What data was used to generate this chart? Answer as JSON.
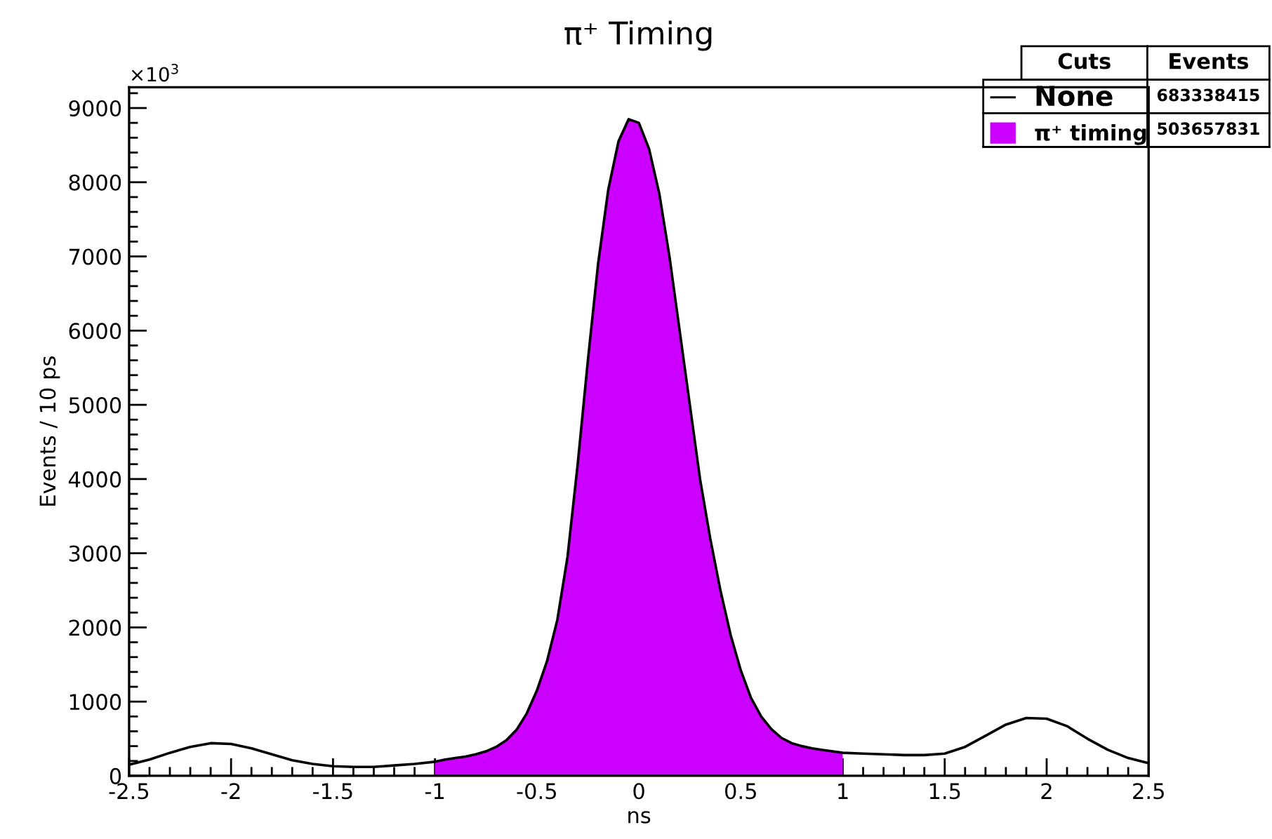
{
  "chart_data": {
    "type": "line",
    "title": "π⁺ Timing",
    "xlabel": "ns",
    "ylabel": "Events / 10 ps",
    "xlim": [
      -2.5,
      2.5
    ],
    "ylim": [
      0,
      9280
    ],
    "xticks": [
      -2.5,
      -2,
      -1.5,
      -1,
      -0.5,
      0,
      0.5,
      1,
      1.5,
      2,
      2.5
    ],
    "yticks": [
      0,
      1000,
      2000,
      3000,
      4000,
      5000,
      6000,
      7000,
      8000,
      9000
    ],
    "grid": false,
    "legend": "top right",
    "marker": "none",
    "line_style": "solid",
    "legend_title": "Cuts",
    "annotations": [
      "×10$^{3}$",
      "Events",
      "683338415",
      "503657831"
    ],
    "series": [
      {
        "name": "None",
        "color": "#000000",
        "x": [
          -2.5,
          -2.4,
          -2.3,
          -2.2,
          -2.1,
          -2.0,
          -1.9,
          -1.8,
          -1.7,
          -1.6,
          -1.5,
          -1.4,
          -1.3,
          -1.2,
          -1.1,
          -1.0,
          -0.95,
          -0.9,
          -0.85,
          -0.8,
          -0.75,
          -0.7,
          -0.65,
          -0.6,
          -0.55,
          -0.5,
          -0.45,
          -0.4,
          -0.35,
          -0.3,
          -0.25,
          -0.2,
          -0.15,
          -0.1,
          -0.05,
          0.0,
          0.05,
          0.1,
          0.15,
          0.2,
          0.25,
          0.3,
          0.35,
          0.4,
          0.45,
          0.5,
          0.55,
          0.6,
          0.65,
          0.7,
          0.75,
          0.8,
          0.85,
          0.9,
          0.95,
          1.0,
          1.1,
          1.2,
          1.3,
          1.4,
          1.5,
          1.6,
          1.7,
          1.8,
          1.9,
          2.0,
          2.1,
          2.2,
          2.3,
          2.4,
          2.5
        ],
        "values": [
          150,
          220,
          310,
          390,
          440,
          430,
          370,
          290,
          210,
          160,
          130,
          120,
          120,
          140,
          160,
          190,
          220,
          240,
          260,
          290,
          330,
          390,
          480,
          620,
          840,
          1150,
          1550,
          2100,
          2950,
          4200,
          5600,
          6900,
          7900,
          8550,
          8850,
          8800,
          8450,
          7850,
          7000,
          6000,
          5000,
          4000,
          3200,
          2500,
          1900,
          1420,
          1050,
          800,
          630,
          510,
          440,
          400,
          370,
          350,
          330,
          310,
          300,
          290,
          280,
          280,
          300,
          390,
          540,
          690,
          780,
          770,
          670,
          500,
          350,
          240,
          170
        ]
      },
      {
        "name": "π⁺ timing",
        "color": "#cc00ff",
        "type": "area",
        "x": [
          -1.0,
          -0.95,
          -0.9,
          -0.85,
          -0.8,
          -0.75,
          -0.7,
          -0.65,
          -0.6,
          -0.55,
          -0.5,
          -0.45,
          -0.4,
          -0.35,
          -0.3,
          -0.25,
          -0.2,
          -0.15,
          -0.1,
          -0.05,
          0.0,
          0.05,
          0.1,
          0.15,
          0.2,
          0.25,
          0.3,
          0.35,
          0.4,
          0.45,
          0.5,
          0.55,
          0.6,
          0.65,
          0.7,
          0.75,
          0.8,
          0.85,
          0.9,
          0.95,
          1.0
        ],
        "values": [
          190,
          220,
          240,
          260,
          290,
          330,
          390,
          480,
          620,
          840,
          1150,
          1550,
          2100,
          2950,
          4200,
          5600,
          6900,
          7900,
          8550,
          8850,
          8800,
          8450,
          7850,
          7000,
          6000,
          5000,
          4000,
          3200,
          2500,
          1900,
          1420,
          1050,
          800,
          630,
          510,
          440,
          400,
          370,
          350,
          330,
          310
        ]
      }
    ]
  }
}
